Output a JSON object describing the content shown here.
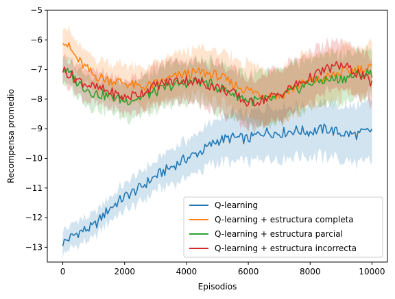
{
  "chart_data": {
    "type": "line",
    "title": "",
    "xlabel": "Episodios",
    "ylabel": "Recompensa promedio",
    "xlim": [
      -500,
      10500
    ],
    "ylim": [
      -13.5,
      -5.0
    ],
    "xticks": [
      0,
      2000,
      4000,
      6000,
      8000,
      10000
    ],
    "yticks": [
      -13,
      -12,
      -11,
      -10,
      -9,
      -8,
      -7,
      -6,
      -5
    ],
    "xtick_labels": [
      "0",
      "2000",
      "4000",
      "6000",
      "8000",
      "10000"
    ],
    "ytick_labels": [
      "−13",
      "−12",
      "−11",
      "−10",
      "−9",
      "−8",
      "−7",
      "−6",
      "−5"
    ],
    "grid": false,
    "legend_position": "lower-right",
    "x": [
      0,
      500,
      1000,
      1500,
      2000,
      2500,
      3000,
      3500,
      4000,
      4500,
      5000,
      5500,
      6000,
      6500,
      7000,
      7500,
      8000,
      8500,
      9000,
      9500,
      10000
    ],
    "series": [
      {
        "name": "Q-learning",
        "color": "#1f77b4",
        "values": [
          -12.85,
          -12.5,
          -12.3,
          -11.7,
          -11.3,
          -11.0,
          -10.6,
          -10.3,
          -10.0,
          -9.75,
          -9.4,
          -9.3,
          -9.35,
          -9.1,
          -9.15,
          -9.05,
          -9.1,
          -9.0,
          -9.15,
          -9.2,
          -9.05
        ],
        "band": [
          0.4,
          0.4,
          0.4,
          0.4,
          0.45,
          0.5,
          0.5,
          0.6,
          0.6,
          0.65,
          0.75,
          0.8,
          0.8,
          0.85,
          0.85,
          0.85,
          0.9,
          0.9,
          0.9,
          0.95,
          1.0
        ]
      },
      {
        "name": "Q-learning + estructura completa",
        "color": "#ff7f0e",
        "values": [
          -5.95,
          -6.7,
          -7.2,
          -7.35,
          -7.45,
          -7.6,
          -7.5,
          -7.3,
          -7.15,
          -7.1,
          -7.2,
          -7.5,
          -7.7,
          -7.85,
          -7.9,
          -7.6,
          -7.4,
          -7.3,
          -7.1,
          -7.0,
          -6.95
        ],
        "band": [
          0.5,
          0.55,
          0.55,
          0.6,
          0.6,
          0.65,
          0.7,
          0.75,
          0.75,
          0.8,
          0.85,
          0.9,
          0.9,
          0.9,
          0.9,
          0.9,
          0.9,
          0.85,
          0.85,
          0.8,
          0.8
        ]
      },
      {
        "name": "Q-learning + estructura parcial",
        "color": "#2ca02c",
        "values": [
          -6.95,
          -7.45,
          -7.8,
          -7.9,
          -8.05,
          -7.95,
          -7.75,
          -7.55,
          -7.45,
          -7.4,
          -7.6,
          -7.8,
          -8.05,
          -8.05,
          -7.95,
          -7.7,
          -7.45,
          -7.35,
          -7.3,
          -7.2,
          -7.1
        ],
        "band": [
          0.45,
          0.5,
          0.55,
          0.55,
          0.6,
          0.6,
          0.65,
          0.7,
          0.7,
          0.75,
          0.8,
          0.85,
          0.85,
          0.9,
          0.9,
          0.9,
          0.85,
          0.85,
          0.85,
          0.8,
          0.8
        ]
      },
      {
        "name": "Q-learning + estructura incorrecta",
        "color": "#d62728",
        "values": [
          -7.0,
          -7.35,
          -7.6,
          -7.75,
          -7.95,
          -7.8,
          -7.55,
          -7.4,
          -7.35,
          -7.45,
          -7.6,
          -7.8,
          -8.15,
          -8.0,
          -7.85,
          -7.55,
          -7.3,
          -7.0,
          -6.85,
          -7.1,
          -7.45
        ],
        "band": [
          0.45,
          0.5,
          0.55,
          0.55,
          0.55,
          0.6,
          0.65,
          0.7,
          0.7,
          0.75,
          0.8,
          0.85,
          0.85,
          0.85,
          0.85,
          0.85,
          0.85,
          0.8,
          0.8,
          0.8,
          0.8
        ]
      }
    ]
  }
}
